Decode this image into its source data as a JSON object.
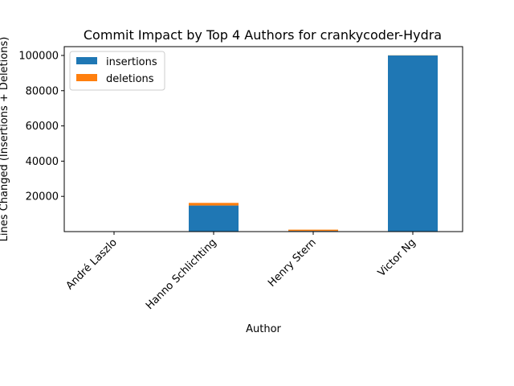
{
  "chart_data": {
    "type": "bar",
    "stacked": true,
    "title": "Commit Impact by Top 4 Authors for crankycoder-Hydra",
    "xlabel": "Author",
    "ylabel": "Lines Changed (Insertions + Deletions)",
    "categories": [
      "André Laszlo",
      "Hanno Schlichting",
      "Henry Stern",
      "Victor Ng"
    ],
    "series": [
      {
        "name": "insertions",
        "color": "#1f77b4",
        "values": [
          40,
          14800,
          400,
          100000
        ]
      },
      {
        "name": "deletions",
        "color": "#ff7f0e",
        "values": [
          10,
          1500,
          700,
          80
        ]
      }
    ],
    "yticks": [
      20000,
      40000,
      60000,
      80000,
      100000
    ],
    "ylim": [
      0,
      105000
    ],
    "legend": "top-left",
    "grid": false
  }
}
